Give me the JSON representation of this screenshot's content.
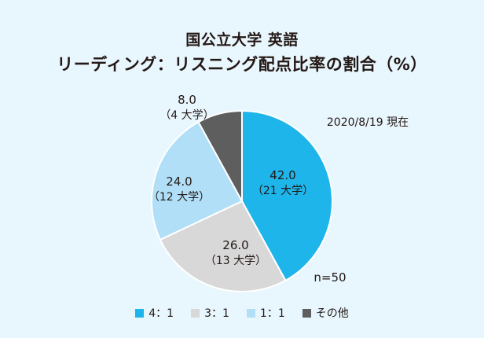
{
  "chart_data": {
    "type": "pie",
    "title_line1": "国公立大学 英語",
    "title_line2": "リーディング：リスニング配点比率の割合（%）",
    "date_note": "2020/8/19 現在",
    "n_label": "n=50",
    "start_angle_deg": 0,
    "direction": "clockwise",
    "slices": [
      {
        "name": "4：1",
        "value": 42.0,
        "value_label": "42.0",
        "count_label": "（21 大学）",
        "color": "#1eb5ea"
      },
      {
        "name": "3：1",
        "value": 26.0,
        "value_label": "26.0",
        "count_label": "（13 大学）",
        "color": "#d8d8d8"
      },
      {
        "name": "1：1",
        "value": 24.0,
        "value_label": "24.0",
        "count_label": "（12 大学）",
        "color": "#b0dff7"
      },
      {
        "name": "その他",
        "value": 8.0,
        "value_label": "8.0",
        "count_label": "（4 大学）",
        "color": "#5e5e5e"
      }
    ]
  }
}
